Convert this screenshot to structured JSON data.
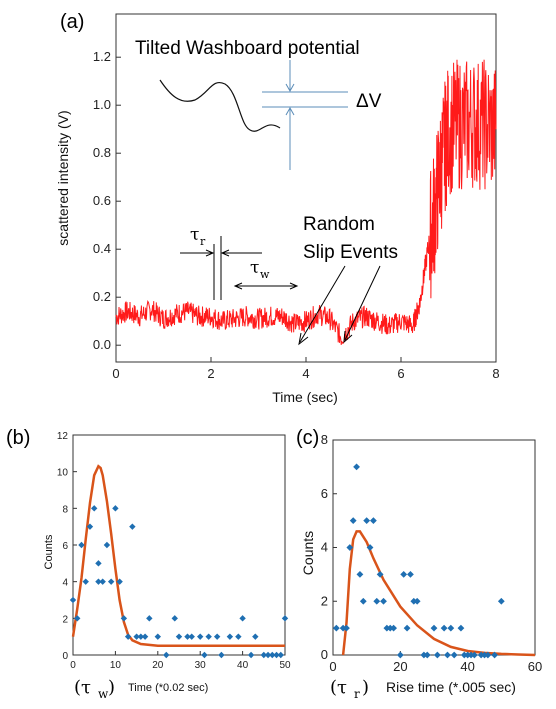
{
  "panels": {
    "a": "(a)",
    "b": "(b)",
    "c": "(c)"
  },
  "annotations": {
    "washboard": "Tilted Washboard potential",
    "delta_v": "ΔV",
    "random_1": "Random",
    "random_2": "Slip Events",
    "tau": "τ",
    "tau_r_sub": "r",
    "tau_w_sub": "w",
    "b_bottom_tau": "(τ",
    "b_bottom_sub": "w",
    "b_bottom_close": ")",
    "c_bottom_tau": "(τ",
    "c_bottom_sub": "r",
    "c_bottom_close": ")"
  },
  "colors": {
    "signal": "#ff1a1a",
    "fit": "#d9541a",
    "points": "#1f6fb2",
    "guide": "#5b8db8"
  },
  "chart_data": [
    {
      "type": "line",
      "panel": "a",
      "xlabel": "Time (sec)",
      "ylabel": "scattered intensity (V)",
      "xlim": [
        0,
        8
      ],
      "ylim": [
        -0.07,
        1.38
      ],
      "xticks": [
        "0",
        "2",
        "4",
        "6",
        "8"
      ],
      "yticks": [
        "0.0",
        "0.2",
        "0.4",
        "0.6",
        "0.8",
        "1.0",
        "1.2"
      ],
      "series": [
        {
          "x": [
            0,
            0.25,
            0.5,
            0.75,
            1,
            1.25,
            1.5,
            1.75,
            2,
            2.25,
            2.5,
            2.75,
            3,
            3.25,
            3.5,
            3.75,
            4,
            4.25,
            4.5,
            4.75,
            5,
            5.25,
            5.5,
            5.75,
            6,
            6.25,
            6.4,
            6.55,
            6.7,
            6.85,
            7,
            7.25,
            7.5,
            7.75,
            8
          ],
          "y": [
            0.12,
            0.14,
            0.12,
            0.15,
            0.11,
            0.13,
            0.14,
            0.12,
            0.12,
            0.1,
            0.11,
            0.12,
            0.11,
            0.12,
            0.12,
            0.09,
            0.1,
            0.13,
            0.11,
            0.03,
            0.1,
            0.12,
            0.1,
            0.08,
            0.1,
            0.08,
            0.18,
            0.38,
            0.55,
            0.75,
            0.9,
            0.92,
            0.93,
            0.92,
            0.9
          ]
        }
      ]
    },
    {
      "type": "scatter",
      "panel": "b",
      "xlabel": "Time (*0.02 sec)",
      "ylabel": "Counts",
      "xlim": [
        0,
        50
      ],
      "ylim": [
        0,
        12
      ],
      "xticks": [
        "0",
        "10",
        "20",
        "30",
        "40",
        "50"
      ],
      "yticks": [
        "0",
        "2",
        "4",
        "6",
        "8",
        "10",
        "12"
      ],
      "points": [
        [
          0,
          3
        ],
        [
          1,
          2
        ],
        [
          2,
          6
        ],
        [
          3,
          4
        ],
        [
          4,
          7
        ],
        [
          5,
          8
        ],
        [
          6,
          4
        ],
        [
          6,
          5
        ],
        [
          7,
          4
        ],
        [
          8,
          6
        ],
        [
          9,
          4
        ],
        [
          10,
          8
        ],
        [
          11,
          4
        ],
        [
          12,
          2
        ],
        [
          13,
          1
        ],
        [
          14,
          7
        ],
        [
          15,
          1
        ],
        [
          16,
          1
        ],
        [
          17,
          1
        ],
        [
          18,
          2
        ],
        [
          20,
          1
        ],
        [
          22,
          0
        ],
        [
          24,
          2
        ],
        [
          25,
          1
        ],
        [
          27,
          1
        ],
        [
          28,
          1
        ],
        [
          30,
          1
        ],
        [
          31,
          0
        ],
        [
          32,
          1
        ],
        [
          34,
          1
        ],
        [
          35,
          0
        ],
        [
          37,
          1
        ],
        [
          39,
          1
        ],
        [
          40,
          2
        ],
        [
          42,
          0
        ],
        [
          43,
          1
        ],
        [
          45,
          0
        ],
        [
          46,
          0
        ],
        [
          47,
          0
        ],
        [
          48,
          0
        ],
        [
          49,
          0
        ],
        [
          50,
          2
        ]
      ],
      "fit": {
        "x": [
          0,
          1,
          2,
          3,
          4,
          5,
          6,
          6.5,
          7,
          8,
          9,
          10,
          11,
          12,
          13,
          14,
          16,
          20,
          30,
          40,
          50
        ],
        "y": [
          1,
          2.5,
          4.2,
          6.3,
          8.3,
          9.8,
          10.3,
          10.2,
          9.8,
          8.4,
          6.6,
          4.7,
          3.0,
          1.8,
          1.1,
          0.8,
          0.6,
          0.5,
          0.5,
          0.5,
          0.5
        ]
      }
    },
    {
      "type": "scatter",
      "panel": "c",
      "xlabel": "Rise time (*.005 sec)",
      "ylabel": "Counts",
      "xlim": [
        0,
        60
      ],
      "ylim": [
        0,
        8
      ],
      "xticks": [
        "0",
        "20",
        "40",
        "60"
      ],
      "yticks": [
        "0",
        "2",
        "4",
        "6",
        "8"
      ],
      "points": [
        [
          1,
          1
        ],
        [
          3,
          1
        ],
        [
          4,
          1
        ],
        [
          5,
          4
        ],
        [
          6,
          5
        ],
        [
          7,
          7
        ],
        [
          8,
          3
        ],
        [
          9,
          2
        ],
        [
          10,
          5
        ],
        [
          11,
          4
        ],
        [
          12,
          5
        ],
        [
          13,
          2
        ],
        [
          14,
          3
        ],
        [
          15,
          2
        ],
        [
          16,
          1
        ],
        [
          17,
          1
        ],
        [
          18,
          1
        ],
        [
          20,
          0
        ],
        [
          21,
          3
        ],
        [
          22,
          1
        ],
        [
          23,
          3
        ],
        [
          24,
          2
        ],
        [
          25,
          2
        ],
        [
          27,
          0
        ],
        [
          28,
          0
        ],
        [
          30,
          1
        ],
        [
          31,
          0
        ],
        [
          33,
          1
        ],
        [
          34,
          0
        ],
        [
          35,
          1
        ],
        [
          36,
          0
        ],
        [
          38,
          1
        ],
        [
          39,
          0
        ],
        [
          40,
          0
        ],
        [
          41,
          0
        ],
        [
          42,
          0
        ],
        [
          44,
          0
        ],
        [
          45,
          0
        ],
        [
          46,
          0
        ],
        [
          48,
          0
        ],
        [
          50,
          2
        ]
      ],
      "fit": {
        "x": [
          3,
          4,
          5,
          6,
          7,
          8,
          10,
          12,
          15,
          20,
          25,
          30,
          35,
          40,
          45,
          50,
          55,
          60
        ],
        "y": [
          0,
          1.2,
          3.2,
          4.3,
          4.6,
          4.6,
          4.2,
          3.6,
          2.8,
          1.8,
          1.1,
          0.6,
          0.3,
          0.15,
          0.08,
          0.04,
          0.02,
          0
        ]
      }
    }
  ]
}
